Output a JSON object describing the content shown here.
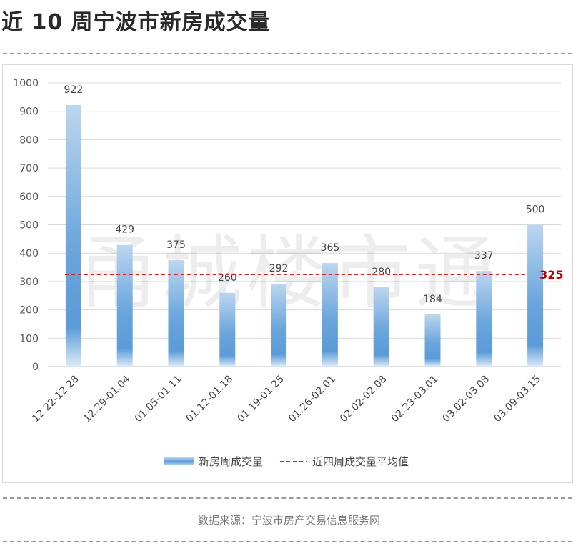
{
  "header": {
    "title": "近 10 周宁波市新房成交量"
  },
  "footer": {
    "source": "数据来源：宁波市房产交易信息服务网"
  },
  "watermark": "甬城楼市通",
  "colors": {
    "bar_top": "#b8d3ee",
    "bar_mid": "#5a9ad8",
    "avg_line": "#e02020",
    "avg_label": "#c00000",
    "grid": "#d9d9d9"
  },
  "chart_data": {
    "type": "bar",
    "title": "",
    "xlabel": "",
    "ylabel": "",
    "ylim": [
      0,
      1000
    ],
    "yticks": [
      0,
      100,
      200,
      300,
      400,
      500,
      600,
      700,
      800,
      900,
      1000
    ],
    "grid": true,
    "legend_position": "bottom",
    "categories": [
      "12.22-12.28",
      "12.29-01.04",
      "01.05-01.11",
      "01.12-01.18",
      "01.19-01.25",
      "01.26-02.01",
      "02.02-02.08",
      "02.23-03.01",
      "03.02-03.08",
      "03.09-03.15"
    ],
    "series": [
      {
        "name": "新房周成交量",
        "type": "bar",
        "values": [
          922,
          429,
          375,
          260,
          292,
          365,
          280,
          184,
          337,
          500
        ]
      }
    ],
    "reference_line": {
      "name": "近四周成交量平均值",
      "value": 325,
      "label": "325",
      "style": "dashed"
    }
  }
}
